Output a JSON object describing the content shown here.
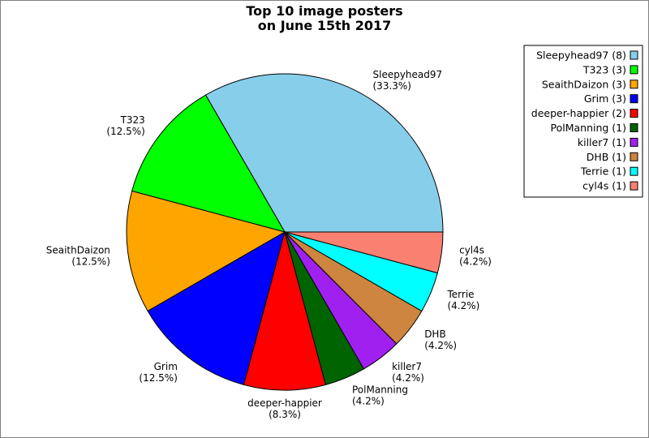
{
  "chart_data": {
    "type": "pie",
    "title": "Top 10 image posters",
    "subtitle": "on June 15th 2017",
    "start_angle_deg": 0,
    "direction": "counterclockwise",
    "legend_placement": "top-right",
    "slices": [
      {
        "label": "Sleepyhead97",
        "value": 8,
        "percent": "(33.3%)",
        "legend": "Sleepyhead97 (8)",
        "color": "#87ceeb"
      },
      {
        "label": "T323",
        "value": 3,
        "percent": "(12.5%)",
        "legend": "T323 (3)",
        "color": "#00ff00"
      },
      {
        "label": "SeaithDaizon",
        "value": 3,
        "percent": "(12.5%)",
        "legend": "SeaithDaizon (3)",
        "color": "#ffa500"
      },
      {
        "label": "Grim",
        "value": 3,
        "percent": "(12.5%)",
        "legend": "Grim (3)",
        "color": "#0000ff"
      },
      {
        "label": "deeper-happier",
        "value": 2,
        "percent": "(8.3%)",
        "legend": "deeper-happier (2)",
        "color": "#ff0000"
      },
      {
        "label": "PolManning",
        "value": 1,
        "percent": "(4.2%)",
        "legend": "PolManning (1)",
        "color": "#006400"
      },
      {
        "label": "killer7",
        "value": 1,
        "percent": "(4.2%)",
        "legend": "killer7 (1)",
        "color": "#a020f0"
      },
      {
        "label": "DHB",
        "value": 1,
        "percent": "(4.2%)",
        "legend": "DHB (1)",
        "color": "#cd853f"
      },
      {
        "label": "Terrie",
        "value": 1,
        "percent": "(4.2%)",
        "legend": "Terrie (1)",
        "color": "#00ffff"
      },
      {
        "label": "cyl4s",
        "value": 1,
        "percent": "(4.2%)",
        "legend": "cyl4s (1)",
        "color": "#fa8072"
      }
    ]
  }
}
